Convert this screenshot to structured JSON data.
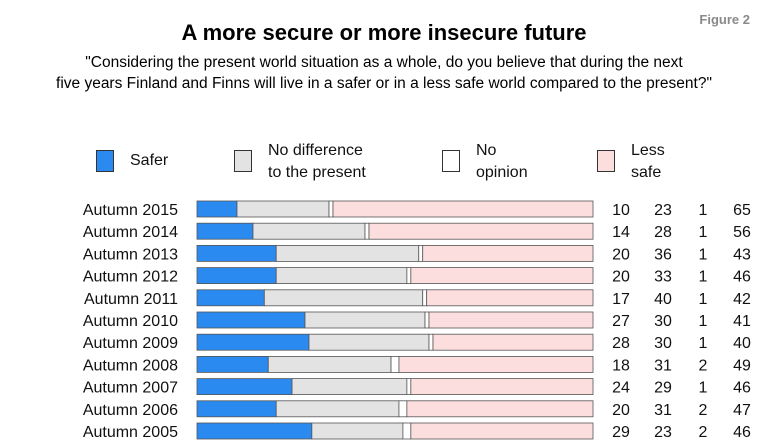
{
  "figure_label": "Figure 2",
  "chart_data": {
    "type": "bar",
    "stacked": true,
    "orientation": "horizontal",
    "title": "A more secure or more insecure future",
    "subtitle_lines": [
      "\"Considering the present world situation as a whole, do you believe that during the next",
      "five years Finland and Finns will live in a safer or in a less safe world compared to the present?\""
    ],
    "legend_placement": "top",
    "categories": [
      "Autumn 2015",
      "Autumn 2014",
      "Autumn 2013",
      "Autumn 2012",
      "Autumn 2011",
      "Autumn 2010",
      "Autumn 2009",
      "Autumn 2008",
      "Autumn 2007",
      "Autumn 2006",
      "Autumn 2005"
    ],
    "series": [
      {
        "name": "Safer",
        "legend_lines": [
          "Safer"
        ],
        "color": "#2a8af0",
        "values": [
          10,
          14,
          20,
          20,
          17,
          27,
          28,
          18,
          24,
          20,
          29
        ]
      },
      {
        "name": "No difference to the present",
        "legend_lines": [
          "No difference",
          "to the present"
        ],
        "color": "#e3e3e3",
        "values": [
          23,
          28,
          36,
          33,
          40,
          30,
          30,
          31,
          29,
          31,
          23
        ]
      },
      {
        "name": "No opinion",
        "legend_lines": [
          "No",
          "opinion"
        ],
        "color": "#ffffff",
        "values": [
          1,
          1,
          1,
          1,
          1,
          1,
          1,
          2,
          1,
          2,
          2
        ]
      },
      {
        "name": "Less safe",
        "legend_lines": [
          "Less",
          "safe"
        ],
        "color": "#fddede",
        "values": [
          65,
          56,
          43,
          46,
          42,
          41,
          40,
          49,
          46,
          47,
          46
        ]
      }
    ],
    "grid": false
  }
}
